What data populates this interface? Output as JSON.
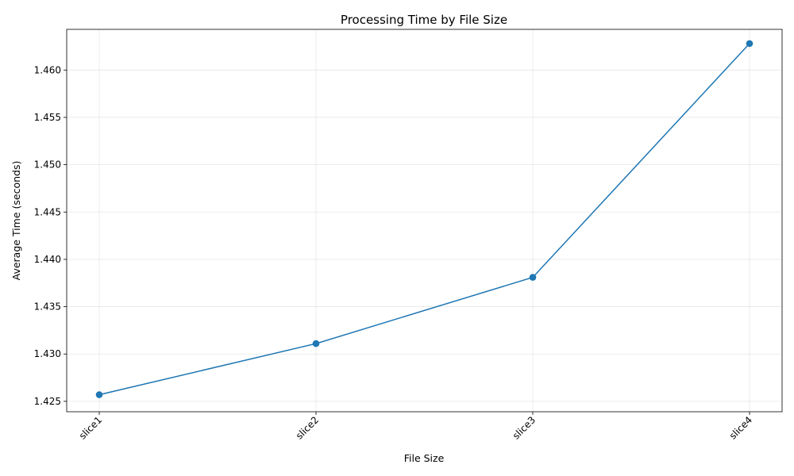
{
  "chart_data": {
    "type": "line",
    "title": "Processing Time by File Size",
    "xlabel": "File Size",
    "ylabel": "Average Time (seconds)",
    "categories": [
      "slice1",
      "slice2",
      "slice3",
      "slice4"
    ],
    "series": [
      {
        "values": [
          1.4257,
          1.4311,
          1.4381,
          1.4628
        ],
        "color": "#1f77b4",
        "marker": "circle"
      }
    ],
    "ylim": [
      1.4239,
      1.4643
    ],
    "yticks": [
      1.425,
      1.43,
      1.435,
      1.44,
      1.445,
      1.45,
      1.455,
      1.46
    ],
    "ytick_labels": [
      "1.425",
      "1.430",
      "1.435",
      "1.440",
      "1.445",
      "1.450",
      "1.455",
      "1.460"
    ],
    "grid": true,
    "xtick_rotation_deg": 45
  }
}
